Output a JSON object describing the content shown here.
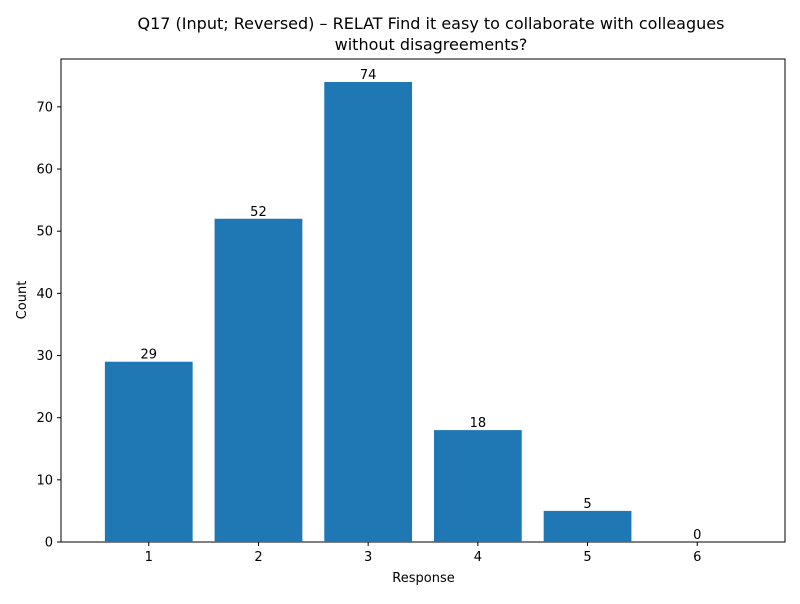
{
  "chart_data": {
    "type": "bar",
    "title_lines": [
      "Q17 (Input; Reversed) – RELAT Find it easy to collaborate with colleagues",
      "without disagreements?"
    ],
    "xlabel": "Response",
    "ylabel": "Count",
    "categories": [
      "1",
      "2",
      "3",
      "4",
      "5",
      "6"
    ],
    "values": [
      29,
      52,
      74,
      18,
      5,
      0
    ],
    "data_labels": [
      "29",
      "52",
      "74",
      "18",
      "5",
      "0"
    ],
    "ylim": [
      0,
      77.7
    ],
    "yticks": [
      0,
      10,
      20,
      30,
      40,
      50,
      60,
      70
    ],
    "ytick_labels": [
      "0",
      "10",
      "20",
      "30",
      "40",
      "50",
      "60",
      "70"
    ],
    "bar_color": "#1f77b4",
    "grid": false,
    "legend": "none"
  }
}
